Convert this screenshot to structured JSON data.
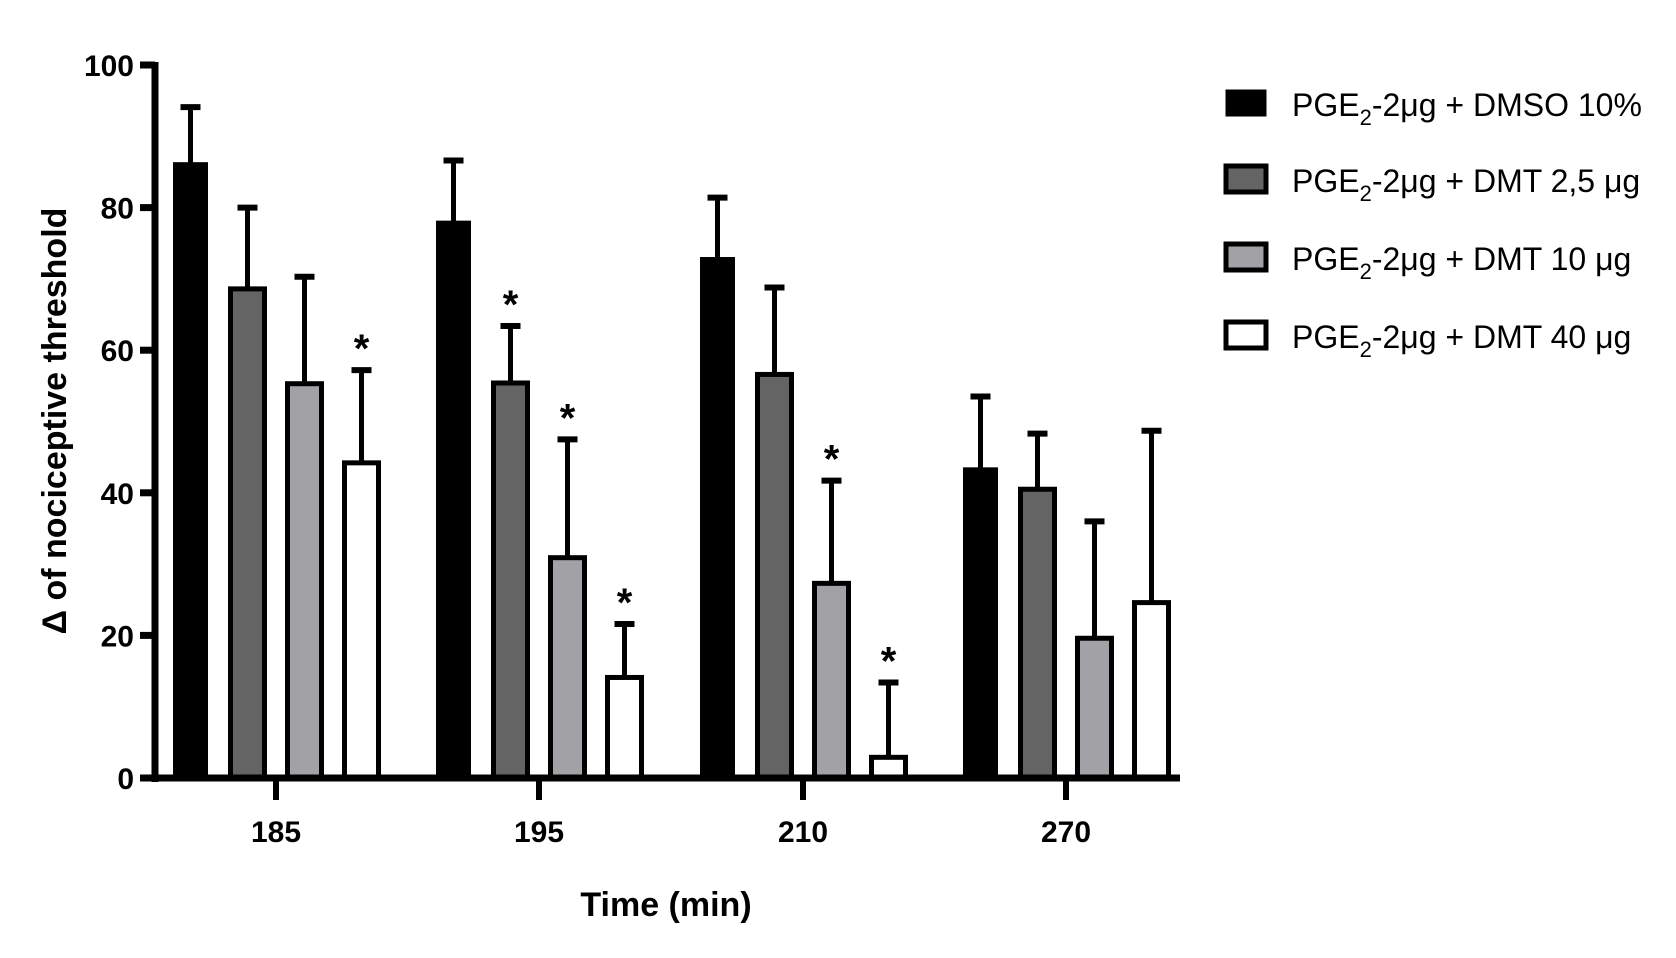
{
  "chart_data": {
    "type": "bar",
    "title": "",
    "xlabel": "Time (min)",
    "ylabel": "Δ of nociceptive threshold",
    "ylim": [
      0,
      100
    ],
    "yticks": [
      "0",
      "20",
      "40",
      "60",
      "80",
      "100"
    ],
    "ytick_values": [
      0,
      20,
      40,
      60,
      80,
      100
    ],
    "categories": [
      "185",
      "195",
      "210",
      "270"
    ],
    "grid": false,
    "legend_position": "top-right",
    "significance_marker": "*",
    "series": [
      {
        "name": "PGE2-2μg + DMSO 10%",
        "legend_main": "PGE",
        "legend_sub": "2",
        "legend_rest": "-2μg + DMSO 10%",
        "fill": "#000000",
        "values": [
          86.3,
          78.1,
          73.0,
          43.5
        ],
        "error_upper": [
          94.1,
          86.6,
          81.4,
          53.5
        ],
        "significant": [
          false,
          false,
          false,
          false
        ]
      },
      {
        "name": "PGE2-2μg + DMT 2,5 μg",
        "legend_main": "PGE",
        "legend_sub": "2",
        "legend_rest": "-2μg + DMT 2,5 μg",
        "fill": "#646464",
        "values": [
          68.6,
          55.4,
          56.6,
          40.5
        ],
        "error_upper": [
          80.0,
          63.4,
          68.8,
          48.3
        ],
        "significant": [
          false,
          true,
          false,
          false
        ]
      },
      {
        "name": "PGE2-2μg + DMT 10 μg",
        "legend_main": "PGE",
        "legend_sub": "2",
        "legend_rest": "-2μg + DMT 10 μg",
        "fill": "#a2a1a6",
        "values": [
          55.3,
          30.9,
          27.3,
          19.6
        ],
        "error_upper": [
          70.3,
          47.5,
          41.7,
          36.0
        ],
        "significant": [
          false,
          true,
          true,
          false
        ]
      },
      {
        "name": "PGE2-2μg + DMT 40 μg",
        "legend_main": "PGE",
        "legend_sub": "2",
        "legend_rest": "-2μg + DMT 40 μg",
        "fill": "#ffffff",
        "values": [
          44.2,
          14.1,
          2.9,
          24.6
        ],
        "error_upper": [
          57.2,
          21.6,
          13.4,
          48.7
        ],
        "significant": [
          true,
          true,
          true,
          false
        ]
      }
    ]
  }
}
